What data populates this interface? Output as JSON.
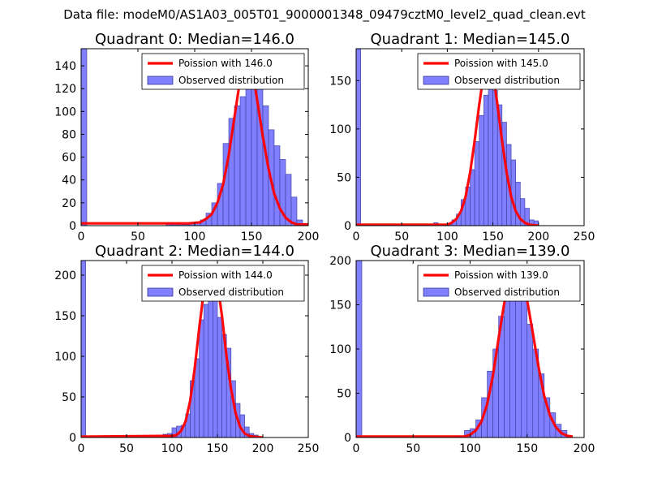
{
  "figure": {
    "suptitle": "Data file: modeM0/AS1A03_005T01_9000001348_09479cztM0_level2_quad_clean.evt"
  },
  "colors": {
    "hist_fill": "#7f7fff",
    "hist_edge": "#3a3a9a",
    "fit_line": "#ff0000"
  },
  "chart_data": [
    {
      "type": "bar",
      "title": "Quadrant 0: Median=146.0",
      "median": 146.0,
      "xlim": [
        0,
        200
      ],
      "ylim": [
        0,
        155
      ],
      "xticks": [
        0,
        50,
        100,
        150,
        200
      ],
      "yticks": [
        0,
        20,
        40,
        60,
        80,
        100,
        120,
        140
      ],
      "legend": [
        "Poission with 146.0",
        "Observed distribution"
      ],
      "legend_loc": "top-right",
      "bin_width": 5,
      "hist": [
        [
          0,
          155
        ],
        [
          75,
          2
        ],
        [
          80,
          2
        ],
        [
          85,
          1
        ],
        [
          90,
          1
        ],
        [
          95,
          2
        ],
        [
          100,
          2
        ],
        [
          105,
          5
        ],
        [
          110,
          11
        ],
        [
          115,
          20
        ],
        [
          120,
          37
        ],
        [
          125,
          72
        ],
        [
          130,
          94
        ],
        [
          135,
          105
        ],
        [
          140,
          113
        ],
        [
          145,
          122
        ],
        [
          150,
          125
        ],
        [
          155,
          123
        ],
        [
          160,
          105
        ],
        [
          165,
          84
        ],
        [
          170,
          70
        ],
        [
          175,
          58
        ],
        [
          180,
          45
        ],
        [
          185,
          25
        ],
        [
          190,
          5
        ],
        [
          195,
          2
        ]
      ],
      "fit": [
        [
          0,
          2
        ],
        [
          95,
          2
        ],
        [
          105,
          3
        ],
        [
          110,
          6
        ],
        [
          115,
          10
        ],
        [
          120,
          20
        ],
        [
          125,
          36
        ],
        [
          130,
          62
        ],
        [
          135,
          95
        ],
        [
          140,
          128
        ],
        [
          146,
          150
        ],
        [
          150,
          140
        ],
        [
          155,
          110
        ],
        [
          160,
          78
        ],
        [
          165,
          50
        ],
        [
          170,
          28
        ],
        [
          175,
          15
        ],
        [
          180,
          7
        ],
        [
          185,
          3
        ],
        [
          190,
          1
        ],
        [
          200,
          1
        ]
      ]
    },
    {
      "type": "bar",
      "title": "Quadrant 1: Median=145.0",
      "median": 145.0,
      "xlim": [
        0,
        250
      ],
      "ylim": [
        0,
        183
      ],
      "xticks": [
        0,
        50,
        100,
        150,
        200,
        250
      ],
      "yticks": [
        0,
        50,
        100,
        150
      ],
      "legend": [
        "Poission with 145.0",
        "Observed distribution"
      ],
      "legend_loc": "top-right",
      "bin_width": 5,
      "hist": [
        [
          0,
          183
        ],
        [
          85,
          3
        ],
        [
          95,
          1
        ],
        [
          100,
          2
        ],
        [
          105,
          6
        ],
        [
          110,
          12
        ],
        [
          115,
          27
        ],
        [
          120,
          40
        ],
        [
          125,
          58
        ],
        [
          130,
          87
        ],
        [
          135,
          114
        ],
        [
          140,
          135
        ],
        [
          145,
          145
        ],
        [
          150,
          140
        ],
        [
          155,
          125
        ],
        [
          160,
          107
        ],
        [
          165,
          84
        ],
        [
          170,
          68
        ],
        [
          175,
          45
        ],
        [
          180,
          28
        ],
        [
          185,
          18
        ],
        [
          190,
          6
        ],
        [
          195,
          5
        ]
      ],
      "fit": [
        [
          0,
          1
        ],
        [
          100,
          1
        ],
        [
          105,
          3
        ],
        [
          110,
          7
        ],
        [
          115,
          15
        ],
        [
          120,
          30
        ],
        [
          125,
          55
        ],
        [
          130,
          88
        ],
        [
          135,
          125
        ],
        [
          140,
          158
        ],
        [
          145,
          172
        ],
        [
          150,
          158
        ],
        [
          155,
          125
        ],
        [
          160,
          88
        ],
        [
          165,
          55
        ],
        [
          170,
          30
        ],
        [
          175,
          15
        ],
        [
          180,
          7
        ],
        [
          185,
          3
        ],
        [
          190,
          1
        ],
        [
          200,
          0
        ]
      ]
    },
    {
      "type": "bar",
      "title": "Quadrant 2: Median=144.0",
      "median": 144.0,
      "xlim": [
        0,
        250
      ],
      "ylim": [
        0,
        218
      ],
      "xticks": [
        0,
        50,
        100,
        150,
        200,
        250
      ],
      "yticks": [
        0,
        50,
        100,
        150,
        200
      ],
      "legend": [
        "Poission with 144.0",
        "Observed distribution"
      ],
      "legend_loc": "top-right",
      "bin_width": 5,
      "hist": [
        [
          0,
          218
        ],
        [
          85,
          1
        ],
        [
          90,
          4
        ],
        [
          95,
          5
        ],
        [
          100,
          12
        ],
        [
          105,
          14
        ],
        [
          110,
          15
        ],
        [
          115,
          29
        ],
        [
          120,
          70
        ],
        [
          125,
          97
        ],
        [
          130,
          145
        ],
        [
          135,
          164
        ],
        [
          140,
          175
        ],
        [
          145,
          172
        ],
        [
          150,
          148
        ],
        [
          155,
          127
        ],
        [
          160,
          110
        ],
        [
          165,
          70
        ],
        [
          170,
          42
        ],
        [
          175,
          28
        ],
        [
          180,
          13
        ],
        [
          185,
          5
        ],
        [
          190,
          3
        ]
      ],
      "fit": [
        [
          0,
          1
        ],
        [
          100,
          2
        ],
        [
          105,
          3
        ],
        [
          110,
          8
        ],
        [
          115,
          20
        ],
        [
          120,
          45
        ],
        [
          125,
          85
        ],
        [
          130,
          135
        ],
        [
          135,
          180
        ],
        [
          144,
          210
        ],
        [
          150,
          190
        ],
        [
          155,
          150
        ],
        [
          160,
          100
        ],
        [
          165,
          60
        ],
        [
          170,
          30
        ],
        [
          175,
          13
        ],
        [
          180,
          5
        ],
        [
          185,
          2
        ],
        [
          190,
          1
        ],
        [
          200,
          0
        ]
      ]
    },
    {
      "type": "bar",
      "title": "Quadrant 3: Median=139.0",
      "median": 139.0,
      "xlim": [
        0,
        200
      ],
      "ylim": [
        0,
        200
      ],
      "xticks": [
        0,
        50,
        100,
        150,
        200
      ],
      "yticks": [
        0,
        50,
        100,
        150,
        200
      ],
      "legend": [
        "Poission with 139.0",
        "Observed distribution"
      ],
      "legend_loc": "top-right",
      "bin_width": 5,
      "hist": [
        [
          0,
          200
        ],
        [
          85,
          1
        ],
        [
          90,
          2
        ],
        [
          95,
          8
        ],
        [
          100,
          10
        ],
        [
          105,
          20
        ],
        [
          110,
          45
        ],
        [
          115,
          75
        ],
        [
          120,
          100
        ],
        [
          125,
          137
        ],
        [
          130,
          175
        ],
        [
          135,
          181
        ],
        [
          140,
          170
        ],
        [
          145,
          155
        ],
        [
          150,
          128
        ],
        [
          155,
          100
        ],
        [
          160,
          72
        ],
        [
          165,
          45
        ],
        [
          170,
          28
        ],
        [
          175,
          15
        ],
        [
          180,
          8
        ]
      ],
      "fit": [
        [
          0,
          1
        ],
        [
          95,
          1
        ],
        [
          100,
          3
        ],
        [
          105,
          8
        ],
        [
          110,
          18
        ],
        [
          115,
          38
        ],
        [
          120,
          70
        ],
        [
          125,
          112
        ],
        [
          130,
          152
        ],
        [
          134,
          178
        ],
        [
          139,
          192
        ],
        [
          145,
          180
        ],
        [
          150,
          155
        ],
        [
          155,
          118
        ],
        [
          160,
          80
        ],
        [
          165,
          47
        ],
        [
          170,
          25
        ],
        [
          175,
          12
        ],
        [
          180,
          5
        ],
        [
          185,
          2
        ],
        [
          190,
          1
        ]
      ]
    }
  ]
}
